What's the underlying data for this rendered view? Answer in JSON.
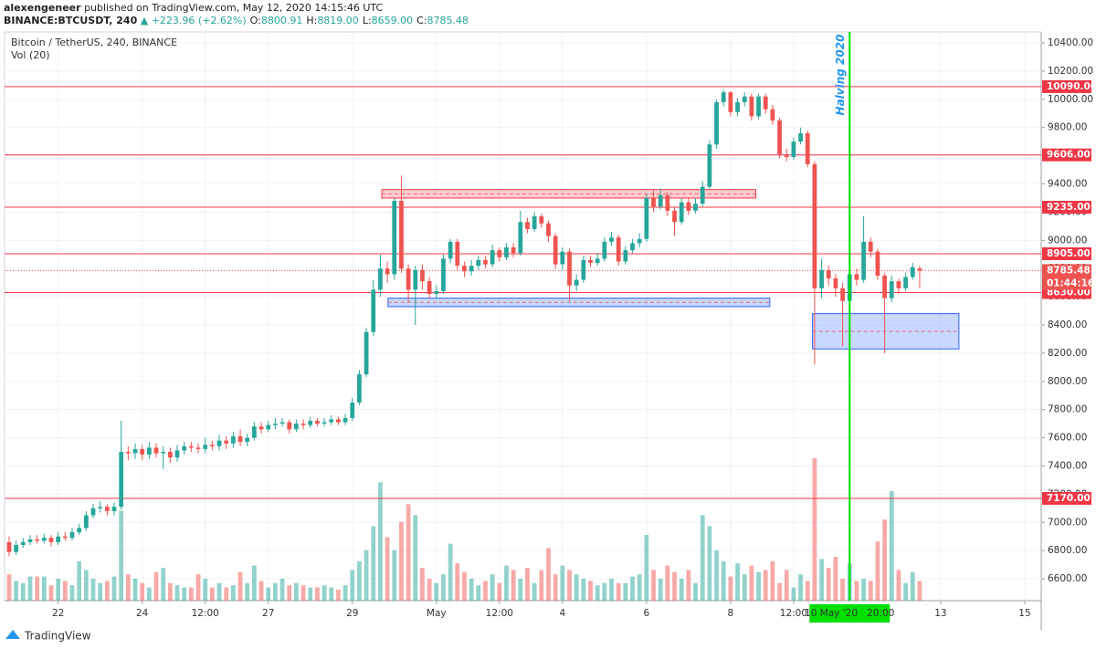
{
  "header": {
    "publisher": "alexengeneer",
    "published": "published on TradingView.com, May 12, 2020 14:15:46 UTC",
    "symbol": "BINANCE:BTCUSDT, 240",
    "change": "▲ +223.96 (+2.62%)",
    "fields": [
      {
        "k": "O:",
        "v": "8800.91"
      },
      {
        "k": "H:",
        "v": "8819.00"
      },
      {
        "k": "L:",
        "v": "8659.00"
      },
      {
        "k": "C:",
        "v": "8785.48"
      }
    ]
  },
  "footer": {
    "brand": "TradingView"
  },
  "chart_data": {
    "type": "candlestick",
    "title": "Bitcoin / TetherUS, 240, BINANCE",
    "subtitle": "Vol (20)",
    "up_color": "#26a69a",
    "down_color": "#ef5350",
    "xlim": [
      -0.65,
      147.35
    ],
    "ylim": [
      6445,
      10478
    ],
    "volume_ylim": [
      0,
      100
    ],
    "xticks": [
      {
        "value": 7,
        "label": "22"
      },
      {
        "value": 19,
        "label": "24"
      },
      {
        "value": 28,
        "label": "12:00"
      },
      {
        "value": 37,
        "label": "27"
      },
      {
        "value": 49,
        "label": "29"
      },
      {
        "value": 61,
        "label": "May"
      },
      {
        "value": 70,
        "label": "12:00"
      },
      {
        "value": 79,
        "label": "4"
      },
      {
        "value": 91,
        "label": "6"
      },
      {
        "value": 103,
        "label": "8"
      },
      {
        "value": 112,
        "label": "12:00"
      },
      {
        "value": 133,
        "label": "13"
      },
      {
        "value": 145,
        "label": "15"
      }
    ],
    "yticks": [
      {
        "value": 6600,
        "label": "6600.00"
      },
      {
        "value": 6800,
        "label": "6800.00"
      },
      {
        "value": 7000,
        "label": "7000.00"
      },
      {
        "value": 7200,
        "label": "7200.00"
      },
      {
        "value": 7400,
        "label": "7400.00"
      },
      {
        "value": 7600,
        "label": "7600.00"
      },
      {
        "value": 7800,
        "label": "7800.00"
      },
      {
        "value": 8000,
        "label": "8000.00"
      },
      {
        "value": 8200,
        "label": "8200.00"
      },
      {
        "value": 8400,
        "label": "8400.00"
      },
      {
        "value": 8600,
        "label": "8600.00"
      },
      {
        "value": 8800,
        "label": "8800.00"
      },
      {
        "value": 9000,
        "label": "9000.00"
      },
      {
        "value": 9200,
        "label": "9200.00"
      },
      {
        "value": 9400,
        "label": "9400.00"
      },
      {
        "value": 9600,
        "label": "9600.00"
      },
      {
        "value": 9800,
        "label": "9800.00"
      },
      {
        "value": 10000,
        "label": "10000.00"
      },
      {
        "value": 10200,
        "label": "10200.00"
      },
      {
        "value": 10400,
        "label": "10400.00"
      }
    ],
    "grid": true,
    "levels": [
      {
        "value": 10090,
        "label": "10090.00"
      },
      {
        "value": 9606,
        "label": "9606.00"
      },
      {
        "value": 9235,
        "label": "9235.00"
      },
      {
        "value": 8905,
        "label": "8905.00"
      },
      {
        "value": 8630,
        "label": "8630.00"
      },
      {
        "value": 7170,
        "label": "7170.00"
      }
    ],
    "level_color": "#f23645",
    "zones": [
      {
        "x": [
          53.2,
          106.6
        ],
        "y": [
          9300,
          9360
        ],
        "color": "#f23645"
      },
      {
        "x": [
          54.1,
          108.6
        ],
        "y": [
          8530,
          8590
        ],
        "color": "#2962ff"
      },
      {
        "x": [
          114.7,
          135.6
        ],
        "y": [
          8230,
          8480
        ],
        "color": "#2962ff"
      }
    ],
    "last": {
      "countdown": "01:44:16"
    },
    "crosshair": {
      "value": 120,
      "label": "10 May '20   20:00",
      "color": "#00e000"
    },
    "annotation": {
      "text": "Halving 2020",
      "color": "#2196f3"
    },
    "open": [
      6860,
      6790,
      6840,
      6860,
      6880,
      6870,
      6890,
      6860,
      6900,
      6890,
      6930,
      6960,
      7050,
      7100,
      7110,
      7080,
      7110,
      7500,
      7490,
      7520,
      7480,
      7530,
      7490,
      7500,
      7460,
      7510,
      7540,
      7530,
      7520,
      7550,
      7540,
      7580,
      7560,
      7610,
      7570,
      7600,
      7680,
      7660,
      7690,
      7700,
      7710,
      7660,
      7700,
      7690,
      7720,
      7700,
      7710,
      7730,
      7710,
      7740,
      7850,
      8050,
      8350,
      8650,
      8800,
      8760,
      9280,
      8800,
      8650,
      8790,
      8710,
      8620,
      8640,
      8870,
      8990,
      8820,
      8780,
      8820,
      8860,
      8830,
      8930,
      8880,
      8950,
      8910,
      9130,
      9080,
      9170,
      9120,
      9030,
      8830,
      8920,
      8680,
      8720,
      8860,
      8840,
      8870,
      8990,
      9020,
      8850,
      8930,
      8980,
      9010,
      9300,
      9240,
      9320,
      9210,
      9130,
      9270,
      9210,
      9260,
      9380,
      9680,
      9980,
      10050,
      9910,
      9980,
      10020,
      9880,
      10020,
      9930,
      9850,
      9610,
      9590,
      9700,
      9760,
      9540,
      8660,
      8790,
      8730,
      8660,
      8570,
      8760,
      8720,
      8990,
      8920,
      8750,
      8590,
      8710,
      8660,
      8740,
      8800.91
    ],
    "high": [
      6900,
      6870,
      6890,
      6910,
      6910,
      6920,
      6910,
      6930,
      6930,
      6960,
      6990,
      7080,
      7130,
      7150,
      7130,
      7140,
      7720,
      7540,
      7560,
      7550,
      7570,
      7560,
      7540,
      7530,
      7550,
      7570,
      7570,
      7560,
      7600,
      7580,
      7620,
      7610,
      7640,
      7660,
      7630,
      7710,
      7710,
      7720,
      7740,
      7740,
      7730,
      7730,
      7730,
      7750,
      7740,
      7740,
      7760,
      7750,
      7770,
      7880,
      8080,
      8380,
      8720,
      8900,
      8850,
      9300,
      9460,
      8830,
      8820,
      8830,
      8740,
      8680,
      8900,
      9010,
      9010,
      8850,
      8860,
      8890,
      8890,
      8970,
      8950,
      8980,
      8980,
      9210,
      9160,
      9200,
      9190,
      9140,
      9050,
      8950,
      8940,
      8760,
      8890,
      8890,
      8910,
      9020,
      9060,
      9040,
      8960,
      9010,
      9050,
      9330,
      9360,
      9370,
      9340,
      9240,
      9300,
      9300,
      9300,
      9420,
      9710,
      10000,
      10070,
      10060,
      10010,
      10050,
      10040,
      10040,
      10040,
      9960,
      9870,
      9650,
      9730,
      9800,
      9780,
      9560,
      8870,
      8820,
      8760,
      8700,
      8800,
      8800,
      9170,
      9020,
      8940,
      8770,
      8750,
      8730,
      8770,
      8840,
      8819
    ],
    "low": [
      6760,
      6770,
      6820,
      6840,
      6850,
      6850,
      6830,
      6840,
      6870,
      6870,
      6910,
      6940,
      7030,
      7070,
      7050,
      7050,
      7090,
      7440,
      7450,
      7440,
      7450,
      7460,
      7380,
      7420,
      7430,
      7480,
      7500,
      7490,
      7490,
      7510,
      7510,
      7520,
      7530,
      7540,
      7540,
      7580,
      7630,
      7640,
      7660,
      7680,
      7630,
      7640,
      7660,
      7670,
      7680,
      7680,
      7690,
      7690,
      7690,
      7720,
      7830,
      8030,
      8320,
      8600,
      8700,
      8720,
      8770,
      8560,
      8400,
      8650,
      8590,
      8590,
      8620,
      8840,
      8790,
      8740,
      8750,
      8790,
      8800,
      8810,
      8850,
      8860,
      8880,
      8890,
      9050,
      9060,
      9090,
      8990,
      8800,
      8790,
      8570,
      8640,
      8700,
      8810,
      8820,
      8850,
      8960,
      8820,
      8830,
      8910,
      8950,
      8990,
      9200,
      9220,
      9170,
      9030,
      9110,
      9180,
      9190,
      9240,
      9360,
      9650,
      9950,
      9880,
      9880,
      9950,
      9850,
      9860,
      9900,
      9820,
      9580,
      9560,
      9570,
      9680,
      9520,
      8120,
      8590,
      8680,
      8600,
      8250,
      8520,
      8680,
      8700,
      8880,
      8720,
      8200,
      8560,
      8620,
      8640,
      8720,
      8659
    ],
    "close": [
      6790,
      6840,
      6860,
      6880,
      6870,
      6890,
      6860,
      6900,
      6890,
      6930,
      6960,
      7050,
      7100,
      7110,
      7080,
      7110,
      7500,
      7490,
      7520,
      7480,
      7530,
      7490,
      7500,
      7460,
      7510,
      7540,
      7530,
      7520,
      7550,
      7540,
      7580,
      7560,
      7610,
      7570,
      7600,
      7680,
      7660,
      7690,
      7700,
      7710,
      7660,
      7700,
      7690,
      7720,
      7700,
      7710,
      7730,
      7710,
      7740,
      7850,
      8050,
      8350,
      8650,
      8800,
      8760,
      9280,
      8800,
      8650,
      8790,
      8710,
      8620,
      8640,
      8870,
      8990,
      8820,
      8780,
      8820,
      8860,
      8830,
      8930,
      8880,
      8950,
      8910,
      9130,
      9080,
      9170,
      9120,
      9030,
      8830,
      8920,
      8680,
      8720,
      8860,
      8840,
      8870,
      8990,
      9020,
      8850,
      8930,
      8980,
      9010,
      9300,
      9240,
      9320,
      9210,
      9130,
      9270,
      9210,
      9260,
      9380,
      9680,
      9980,
      10050,
      9910,
      9980,
      10020,
      9880,
      10020,
      9930,
      9850,
      9610,
      9590,
      9700,
      9760,
      9540,
      8660,
      8790,
      8730,
      8660,
      8570,
      8760,
      8720,
      8990,
      8920,
      8750,
      8590,
      8710,
      8660,
      8740,
      8810,
      8785.48
    ],
    "volume": [
      12,
      9,
      8,
      11,
      11,
      11,
      7,
      10,
      9,
      7,
      18,
      14,
      10,
      8,
      9,
      11,
      41,
      12,
      10,
      8,
      6,
      13,
      15,
      8,
      7,
      6,
      6,
      12,
      10,
      6,
      8,
      6,
      7,
      13,
      8,
      16,
      9,
      6,
      8,
      10,
      7,
      8,
      7,
      6,
      6,
      7,
      6,
      5,
      7,
      14,
      18,
      23,
      34,
      54,
      29,
      23,
      36,
      44,
      39,
      15,
      10,
      8,
      12,
      26,
      17,
      13,
      10,
      7,
      9,
      12,
      8,
      16,
      14,
      10,
      15,
      8,
      14,
      24,
      12,
      16,
      14,
      12,
      10,
      9,
      7,
      8,
      10,
      8,
      8,
      11,
      12,
      30,
      14,
      10,
      16,
      13,
      10,
      14,
      8,
      39,
      34,
      23,
      18,
      11,
      17,
      12,
      16,
      13,
      14,
      18,
      8,
      14,
      6,
      12,
      9,
      65,
      19,
      15,
      20,
      10,
      17,
      9,
      10,
      9,
      27,
      37,
      50,
      14,
      8,
      13,
      9
    ]
  }
}
